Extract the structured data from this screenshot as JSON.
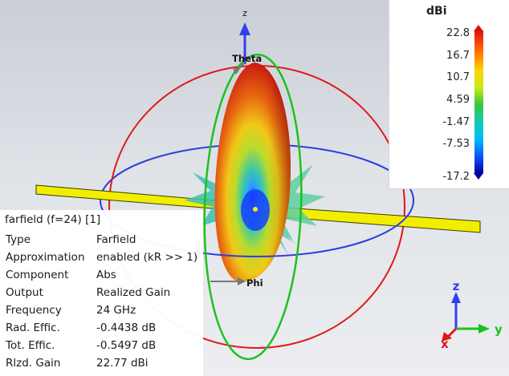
{
  "scene": {
    "axis_z_label": "z",
    "theta_label": "Theta",
    "phi_label": "Phi"
  },
  "legend": {
    "unit": "dBi",
    "ticks": [
      "22.8",
      "16.7",
      "10.7",
      "4.59",
      "-1.47",
      "-7.53",
      "-17.2"
    ],
    "colors": [
      "#e01010",
      "#ff6a00",
      "#ffd400",
      "#37c83a",
      "#18c8b4",
      "#00bcff",
      "#0a4af0",
      "#0000a8"
    ]
  },
  "info": {
    "title": "farfield (f=24) [1]",
    "rows": [
      {
        "key": "Type",
        "value": "Farfield"
      },
      {
        "key": "Approximation",
        "value": "enabled (kR >> 1)"
      },
      {
        "key": "Component",
        "value": "Abs"
      },
      {
        "key": "Output",
        "value": "Realized Gain"
      },
      {
        "key": "Frequency",
        "value": "24 GHz"
      },
      {
        "key": "Rad. Effic.",
        "value": "-0.4438 dB"
      },
      {
        "key": "Tot. Effic.",
        "value": "-0.5497 dB"
      },
      {
        "key": "Rlzd. Gain",
        "value": "22.77 dBi"
      }
    ]
  },
  "triad": {
    "z": "z",
    "y": "y",
    "x": "x"
  }
}
